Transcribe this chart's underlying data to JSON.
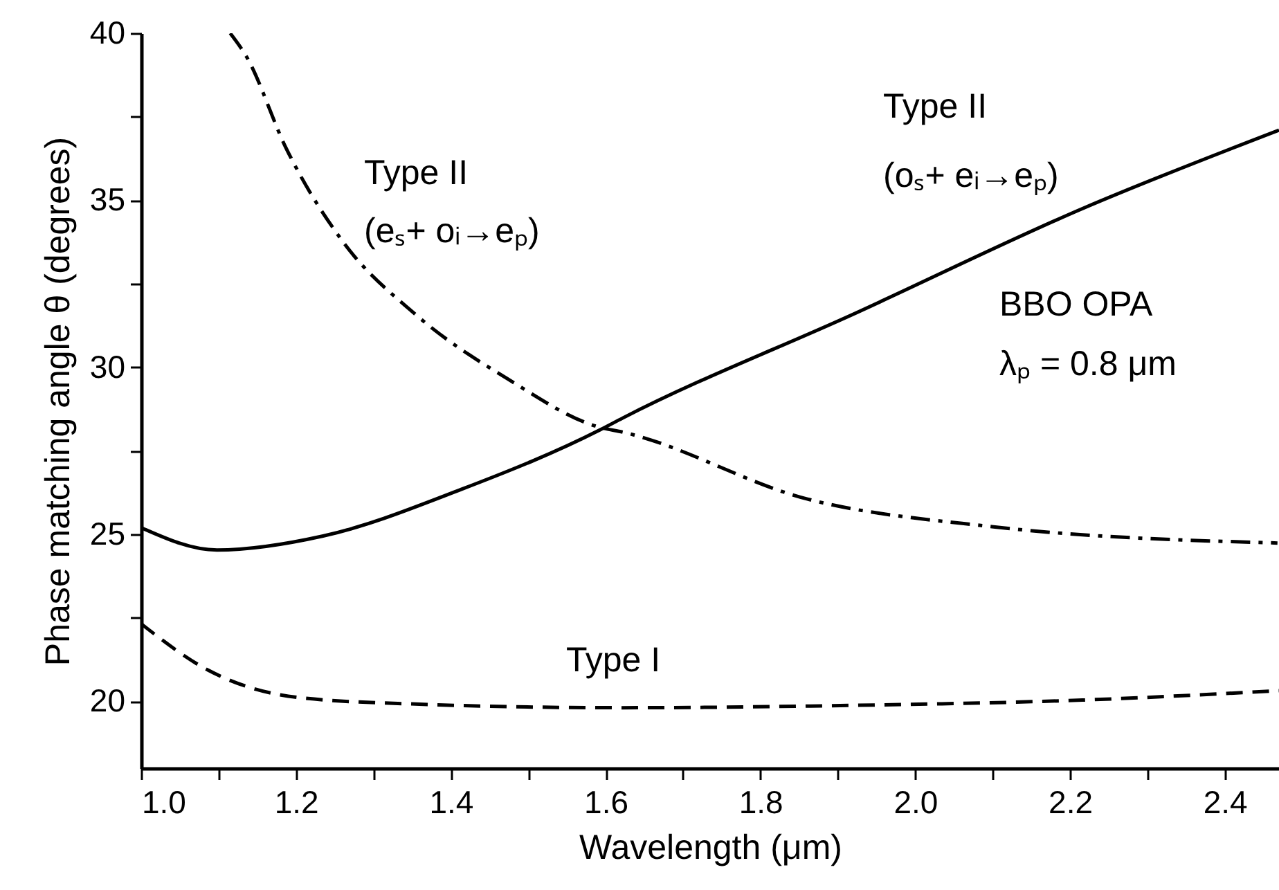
{
  "chart_data": {
    "type": "line",
    "xlabel": "Wavelength (μm)",
    "ylabel": "Phase matching angle θ (degrees)",
    "xlim": [
      1.0,
      2.47
    ],
    "ylim": [
      18,
      40
    ],
    "xticks": [
      {
        "value": 1.0,
        "label": "1.0"
      },
      {
        "value": 1.1,
        "label": null
      },
      {
        "value": 1.2,
        "label": "1.2"
      },
      {
        "value": 1.3,
        "label": null
      },
      {
        "value": 1.4,
        "label": "1.4"
      },
      {
        "value": 1.5,
        "label": null
      },
      {
        "value": 1.6,
        "label": "1.6"
      },
      {
        "value": 1.7,
        "label": null
      },
      {
        "value": 1.8,
        "label": "1.8"
      },
      {
        "value": 1.9,
        "label": null
      },
      {
        "value": 2.0,
        "label": "2.0"
      },
      {
        "value": 2.1,
        "label": null
      },
      {
        "value": 2.2,
        "label": "2.2"
      },
      {
        "value": 2.3,
        "label": null
      },
      {
        "value": 2.4,
        "label": "2.4"
      }
    ],
    "yticks": [
      20,
      {
        "value": 22.5,
        "label": null
      },
      25,
      {
        "value": 27.5,
        "label": null
      },
      30,
      {
        "value": 32.5,
        "label": null
      },
      35,
      {
        "value": 37.5,
        "label": null
      },
      40
    ],
    "grid": false,
    "marker": "none",
    "series": [
      {
        "color": "#000000",
        "line_style": "solid",
        "x": [
          1.0,
          1.098,
          1.235,
          1.414,
          1.593,
          1.622,
          1.92,
          2.218,
          2.47
        ],
        "values": [
          25.2,
          24.53,
          24.95,
          26.35,
          28.13,
          28.48,
          31.59,
          34.77,
          37.1
        ]
      },
      {
        "color": "#000000",
        "line_style": "dashdot",
        "x": [
          1.115,
          1.136,
          1.187,
          1.259,
          1.354,
          1.473,
          1.593,
          1.622,
          1.86,
          2.099,
          2.468
        ],
        "values": [
          40,
          39.3,
          36.57,
          33.81,
          31.59,
          29.66,
          28.2,
          28.06,
          26.06,
          25.23,
          24.74
        ]
      },
      {
        "color": "#000000",
        "line_style": "dashed",
        "x": [
          1.0,
          1.086,
          1.205,
          1.354,
          1.62,
          1.918,
          2.216,
          2.47
        ],
        "values": [
          22.32,
          20.94,
          20.11,
          19.92,
          19.81,
          19.88,
          20.04,
          20.32
        ]
      }
    ],
    "annotations": [
      "Type II",
      "(eₛ+ oᵢ→eₚ)",
      "Type II",
      "(oₛ+ eᵢ→eₚ)",
      "BBO OPA",
      "λₚ = 0.8 μm",
      "Type I"
    ]
  }
}
